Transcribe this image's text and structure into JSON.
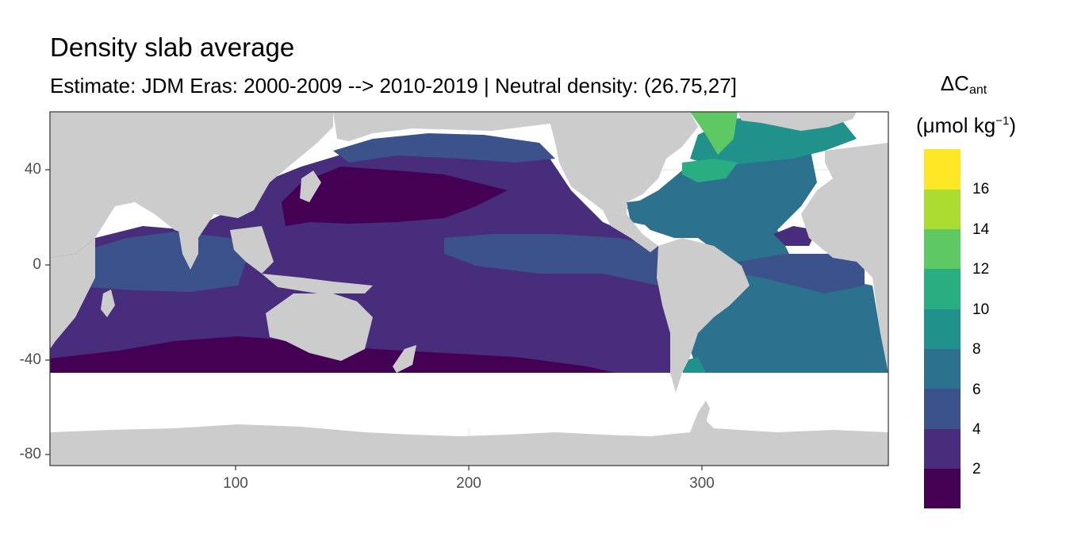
{
  "title": "Density slab average",
  "subtitle": "Estimate: JDM Eras: 2000-2009 --> 2010-2019 | Neutral density: (26.75,27]",
  "legend": {
    "title_main": "ΔC",
    "title_sub": "ant",
    "unit_pre": "(μmol kg",
    "unit_sup": "−1",
    "unit_post": ")",
    "labels": [
      "2",
      "4",
      "6",
      "8",
      "10",
      "12",
      "14",
      "16"
    ],
    "colors": [
      "#440154",
      "#472d7b",
      "#3b528b",
      "#2c728e",
      "#21918c",
      "#28ae80",
      "#5ec962",
      "#addc30",
      "#fde725"
    ]
  },
  "axes": {
    "x_ticks": [
      "100",
      "200",
      "300"
    ],
    "y_ticks": [
      "40",
      "0",
      "-40",
      "-80"
    ]
  },
  "colors": {
    "land": "#cccccc",
    "no_data": "#ffffff",
    "grid": "#ebebeb",
    "border": "#333333"
  }
}
